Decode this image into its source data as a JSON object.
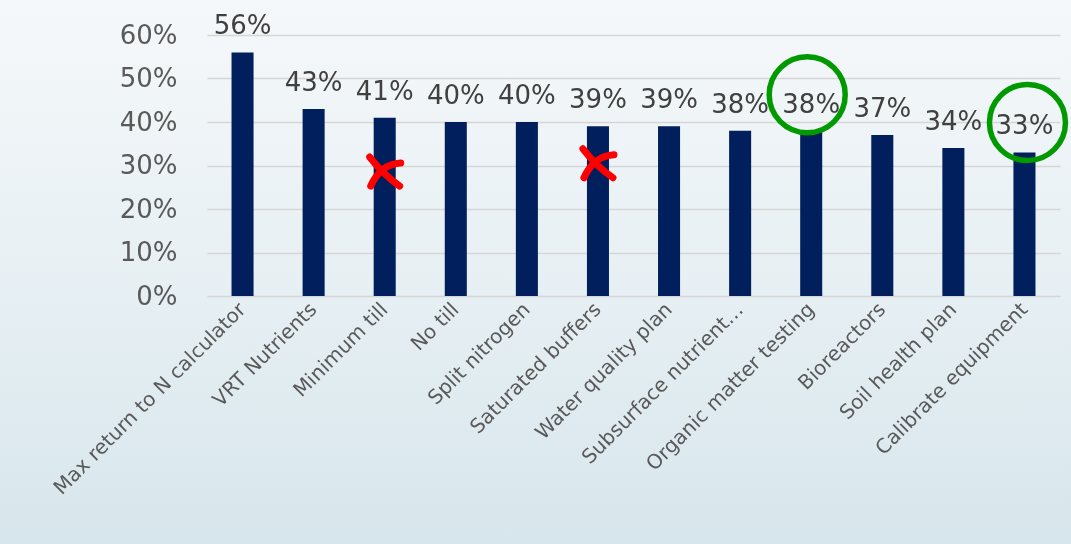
{
  "chart_data": {
    "type": "bar",
    "categories": [
      "Max return to N calculator",
      "VRT Nutrients",
      "Minimum till",
      "No till",
      "Split nitrogen",
      "Saturated buffers",
      "Water quality plan",
      "Subsurface nutrient…",
      "Organic matter testing",
      "Bioreactors",
      "Soil health plan",
      "Calibrate equipment"
    ],
    "values": [
      56,
      43,
      41,
      40,
      40,
      39,
      39,
      38,
      38,
      37,
      34,
      33
    ],
    "value_labels": [
      "56%",
      "43%",
      "41%",
      "40%",
      "40%",
      "39%",
      "39%",
      "38%",
      "38%",
      "37%",
      "34%",
      "33%"
    ],
    "color": "#001f5c",
    "ylim": [
      0,
      60
    ],
    "yticks": [
      {
        "value": 0,
        "label": "0%"
      },
      {
        "value": 10,
        "label": "10%"
      },
      {
        "value": 20,
        "label": "20%"
      },
      {
        "value": 30,
        "label": "30%"
      },
      {
        "value": 40,
        "label": "40%"
      },
      {
        "value": 50,
        "label": "50%"
      },
      {
        "value": 60,
        "label": "60%"
      }
    ],
    "grid": "y"
  }
}
